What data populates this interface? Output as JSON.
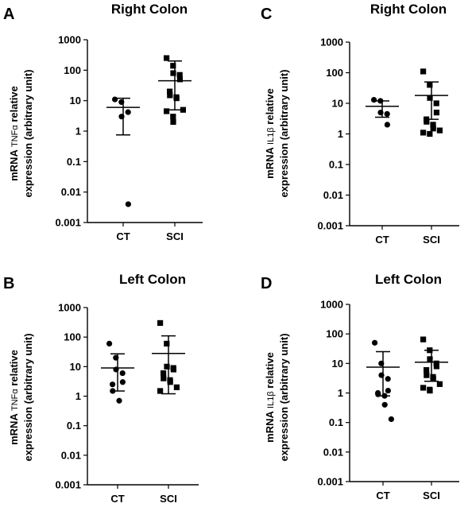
{
  "chart_data": [
    {
      "panel": "A",
      "type": "scatter",
      "title": "Right Colon",
      "ylabel_prefix": "mRNA",
      "ylabel_gene": "TNFα",
      "ylabel_rest": "relative",
      "ylabel_line2": "expression (arbitrary unit)",
      "yscale": "log",
      "ylim": [
        0.001,
        1000
      ],
      "ytick_labels": [
        "1000",
        "100",
        "10",
        "1",
        "0.1",
        "0.01",
        "0.001"
      ],
      "ytick_values": [
        1000,
        100,
        10,
        1,
        0.1,
        0.01,
        0.001
      ],
      "categories": [
        "CT",
        "SCI"
      ],
      "groups": [
        {
          "category": "CT",
          "marker": "circle",
          "mean": 6,
          "error": [
            0.75,
            12
          ],
          "values": [
            11,
            9,
            3,
            4.2,
            0.004
          ]
        },
        {
          "category": "SCI",
          "marker": "square",
          "mean": 45,
          "error": [
            5,
            200
          ],
          "values": [
            250,
            140,
            80,
            70,
            50,
            20,
            15,
            13,
            12,
            5,
            4.5,
            3,
            2
          ]
        }
      ]
    },
    {
      "panel": "B",
      "type": "scatter",
      "title": "Left Colon",
      "ylabel_prefix": "mRNA",
      "ylabel_gene": "TNFα",
      "ylabel_rest": "relative",
      "ylabel_line2": "expression (arbitrary unit)",
      "yscale": "log",
      "ylim": [
        0.001,
        1000
      ],
      "ytick_labels": [
        "1000",
        "100",
        "10",
        "1",
        "0.1",
        "0.01",
        "0.001"
      ],
      "ytick_values": [
        1000,
        100,
        10,
        1,
        0.1,
        0.01,
        0.001
      ],
      "categories": [
        "CT",
        "SCI"
      ],
      "groups": [
        {
          "category": "CT",
          "marker": "circle",
          "mean": 9,
          "error": [
            1.5,
            27
          ],
          "values": [
            60,
            20,
            8,
            6,
            3,
            2.5,
            1.5,
            0.7
          ]
        },
        {
          "category": "SCI",
          "marker": "square",
          "mean": 28,
          "error": [
            1.2,
            110
          ],
          "values": [
            300,
            60,
            10,
            9,
            8,
            6,
            4,
            3.5,
            3,
            2,
            1.5
          ]
        }
      ]
    },
    {
      "panel": "C",
      "type": "scatter",
      "title": "Right Colon",
      "ylabel_prefix": "mRNA",
      "ylabel_gene": "IL1β",
      "ylabel_rest": "relative",
      "ylabel_line2": "expression (arbitrary unit)",
      "yscale": "log",
      "ylim": [
        0.001,
        1000
      ],
      "ytick_labels": [
        "1000",
        "100",
        "10",
        "1",
        "0.1",
        "0.01",
        "0.001"
      ],
      "ytick_values": [
        1000,
        100,
        10,
        1,
        0.1,
        0.01,
        0.001
      ],
      "categories": [
        "CT",
        "SCI"
      ],
      "groups": [
        {
          "category": "CT",
          "marker": "circle",
          "mean": 8,
          "error": [
            3.5,
            12
          ],
          "values": [
            13,
            12,
            5,
            4.5,
            2
          ]
        },
        {
          "category": "SCI",
          "marker": "square",
          "mean": 18,
          "error": [
            3,
            50
          ],
          "values": [
            110,
            40,
            15,
            10,
            5,
            3,
            2.5,
            2,
            1.5,
            1.3,
            1.1,
            1.0
          ]
        }
      ]
    },
    {
      "panel": "D",
      "type": "scatter",
      "title": "Left Colon",
      "ylabel_prefix": "mRNA",
      "ylabel_gene": "IL1β",
      "ylabel_rest": "relative",
      "ylabel_line2": "expression (arbitrary unit)",
      "yscale": "log",
      "ylim": [
        0.001,
        1000
      ],
      "ytick_labels": [
        "1000",
        "100",
        "10",
        "1",
        "0.1",
        "0.01",
        "0.001"
      ],
      "ytick_values": [
        1000,
        100,
        10,
        1,
        0.1,
        0.01,
        0.001
      ],
      "categories": [
        "CT",
        "SCI"
      ],
      "groups": [
        {
          "category": "CT",
          "marker": "circle",
          "mean": 7.5,
          "error": [
            0.8,
            25
          ],
          "values": [
            50,
            10,
            4,
            3,
            1.2,
            1.0,
            0.9,
            0.8,
            0.4,
            0.13
          ]
        },
        {
          "category": "SCI",
          "marker": "square",
          "mean": 11,
          "error": [
            2.5,
            28
          ],
          "values": [
            65,
            28,
            14,
            10,
            8,
            6,
            4,
            3.5,
            3,
            2,
            1.5,
            1.3,
            1.2
          ]
        }
      ]
    }
  ]
}
